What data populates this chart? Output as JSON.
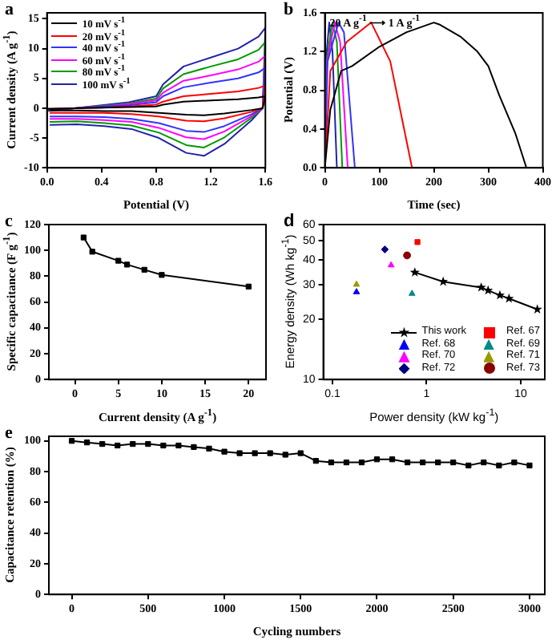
{
  "chart_data": [
    {
      "type": "line",
      "title": "a",
      "xlabel": "Potential (V)",
      "ylabel": "Current density (A g$^{-1}$)",
      "legend": "top left",
      "x": [
        0,
        0.2,
        0.4,
        0.6,
        0.8,
        0.85,
        1.0,
        1.2,
        1.4,
        1.55,
        1.6,
        1.58,
        1.5,
        1.3,
        1.15,
        1.02,
        0.82,
        0.62,
        0.42,
        0.22,
        0.02
      ],
      "series": [
        {
          "name": "10 mV s$^{-1}$",
          "color": "#000000",
          "values": [
            -0.1,
            0,
            0.1,
            0.2,
            0.3,
            0.6,
            1.1,
            1.3,
            1.5,
            1.8,
            2.0,
            0,
            -0.3,
            -0.9,
            -1.2,
            -1.1,
            -0.8,
            -0.5,
            -0.5,
            -0.4,
            -0.4
          ]
        },
        {
          "name": "20 mV s$^{-1}$",
          "color": "#ff0000",
          "values": [
            -0.1,
            0,
            0.1,
            0.3,
            0.6,
            1.1,
            2.0,
            2.4,
            2.8,
            3.4,
            3.8,
            0,
            -0.6,
            -1.7,
            -2.2,
            -2.1,
            -1.4,
            -1.0,
            -0.8,
            -0.8,
            -0.8
          ]
        },
        {
          "name": "40 mV s$^{-1}$",
          "color": "#3333ff",
          "values": [
            -0.3,
            0,
            0.3,
            0.5,
            1.0,
            2.0,
            3.5,
            4.3,
            5.0,
            6.0,
            6.8,
            0,
            -1.0,
            -3.0,
            -4.0,
            -3.8,
            -2.5,
            -1.8,
            -1.5,
            -1.4,
            -1.4
          ]
        },
        {
          "name": "60 mV s$^{-1}$",
          "color": "#ff00ff",
          "values": [
            -0.3,
            0,
            0.3,
            0.7,
            1.3,
            2.6,
            4.6,
            5.5,
            6.5,
            7.8,
            8.8,
            0,
            -1.3,
            -3.9,
            -5.2,
            -4.9,
            -3.3,
            -2.3,
            -2.0,
            -1.8,
            -1.8
          ]
        },
        {
          "name": "80 mV s$^{-1}$",
          "color": "#009900",
          "values": [
            -0.4,
            0,
            0.4,
            0.8,
            1.6,
            3.3,
            5.7,
            7.0,
            8.2,
            9.8,
            11.1,
            0,
            -1.6,
            -4.9,
            -6.6,
            -6.2,
            -4.1,
            -2.9,
            -2.5,
            -2.2,
            -2.3
          ]
        },
        {
          "name": "100 mV s$^{-1}$",
          "color": "#2222aa",
          "values": [
            -0.5,
            0,
            0.5,
            1,
            2,
            4,
            7,
            8.5,
            10,
            12,
            13.5,
            0,
            -2,
            -6,
            -8,
            -7.5,
            -5,
            -3.5,
            -3,
            -2.7,
            -2.8
          ]
        }
      ],
      "xlim": [
        0,
        1.6
      ],
      "xticks": [
        {
          "value": 0,
          "label": "0.0"
        },
        0.4,
        0.8,
        1.2,
        1.6
      ],
      "ylim": [
        -10,
        16
      ],
      "yticks": [
        -10,
        -5,
        0,
        5,
        10,
        15
      ]
    },
    {
      "type": "line",
      "title": "b",
      "xlabel": "Time (sec)",
      "ylabel": "Potential (V)",
      "annotations": [
        "20 A g$^{-1}$ ⟶ 1 A g$^{-1}$"
      ],
      "series": [
        {
          "color": "#000000",
          "x": [
            0,
            10,
            30,
            50,
            100,
            150,
            200,
            210,
            250,
            280,
            300,
            320,
            350,
            370
          ],
          "values": [
            0,
            0.6,
            1.0,
            1.05,
            1.25,
            1.4,
            1.5,
            1.48,
            1.35,
            1.2,
            1.05,
            0.75,
            0.35,
            0
          ]
        },
        {
          "color": "#ff0000",
          "x": [
            0,
            10,
            40,
            85,
            120,
            160
          ],
          "values": [
            0,
            1.0,
            1.3,
            1.5,
            1.1,
            0
          ]
        },
        {
          "color": "#3333ff",
          "x": [
            0,
            5,
            25,
            35,
            55
          ],
          "values": [
            0,
            1.1,
            1.5,
            1.4,
            0
          ]
        },
        {
          "color": "#ff00ff",
          "x": [
            0,
            4,
            18,
            28,
            42
          ],
          "values": [
            0,
            1.1,
            1.5,
            1.3,
            0
          ]
        },
        {
          "color": "#009900",
          "x": [
            0,
            3,
            14,
            22,
            32
          ],
          "values": [
            0,
            1.1,
            1.5,
            1.3,
            0
          ]
        },
        {
          "color": "#2222aa",
          "x": [
            0,
            2,
            8,
            14,
            22
          ],
          "values": [
            0,
            1.1,
            1.5,
            1.2,
            0
          ]
        }
      ],
      "xlim": [
        0,
        400
      ],
      "xticks": [
        0,
        100,
        200,
        300,
        400
      ],
      "ylim": [
        0,
        1.6
      ],
      "yticks": [
        {
          "value": 0,
          "label": "0.0"
        },
        0.4,
        0.8,
        1.2,
        1.6
      ]
    },
    {
      "type": "line",
      "title": "c",
      "xlabel": "Current density (A g$^{-1}$)",
      "ylabel": "Specific capacitance (F g$^{-1}$)",
      "marker": "square",
      "color": "#000000",
      "x": [
        1,
        2,
        5,
        6,
        8,
        10,
        20
      ],
      "values": [
        110,
        99,
        92,
        89,
        85,
        81,
        72
      ],
      "xlim": [
        -3,
        22
      ],
      "xticks": [
        0,
        5,
        10,
        15,
        20
      ],
      "ylim": [
        0,
        120
      ],
      "yticks": [
        0,
        20,
        40,
        60,
        80,
        100,
        120
      ]
    },
    {
      "type": "scatter",
      "title": "d",
      "xlabel": "Power density (kW kg$^{-1}$)",
      "ylabel": "Energy density (Wh kg$^{-1}$)",
      "log": "xy",
      "legend": "bottom right",
      "series": [
        {
          "name": "This work",
          "type": "line",
          "marker": "star",
          "color": "#000000",
          "x": [
            0.75,
            1.5,
            3.8,
            4.5,
            6,
            7.5,
            15
          ],
          "values": [
            34.5,
            31,
            29,
            28,
            26.5,
            25.5,
            22.5
          ]
        },
        {
          "name": "Ref. 67",
          "marker": "square",
          "color": "#ff0000",
          "x": [
            0.8
          ],
          "values": [
            49
          ]
        },
        {
          "name": "Ref. 68",
          "marker": "triangle",
          "color": "#0000ff",
          "x": [
            0.18
          ],
          "values": [
            27.5
          ]
        },
        {
          "name": "Ref. 69",
          "marker": "triangle",
          "color": "#008b8b",
          "x": [
            0.7
          ],
          "values": [
            27
          ]
        },
        {
          "name": "Ref. 70",
          "marker": "triangle",
          "color": "#ff00ff",
          "x": [
            0.42
          ],
          "values": [
            37.5
          ]
        },
        {
          "name": "Ref. 71",
          "marker": "triangle",
          "color": "#999900",
          "x": [
            0.18
          ],
          "values": [
            30
          ]
        },
        {
          "name": "Ref. 72",
          "marker": "diamond",
          "color": "#000080",
          "x": [
            0.36
          ],
          "values": [
            45
          ]
        },
        {
          "name": "Ref. 73",
          "marker": "circle",
          "color": "#8b0000",
          "x": [
            0.62
          ],
          "values": [
            42
          ]
        }
      ],
      "xlim": [
        0.08,
        18
      ],
      "xticks": [
        0.1,
        1,
        10
      ],
      "ylim": [
        10,
        60
      ],
      "yticks": [
        10,
        20,
        30,
        40,
        50,
        60
      ]
    },
    {
      "type": "line",
      "title": "e",
      "xlabel": "Cycling numbers",
      "ylabel": "Capacitance retention (%)",
      "marker": "square",
      "color": "#000000",
      "x": [
        0,
        100,
        200,
        300,
        400,
        500,
        600,
        700,
        800,
        900,
        1000,
        1100,
        1200,
        1300,
        1400,
        1500,
        1600,
        1700,
        1800,
        1900,
        2000,
        2100,
        2200,
        2300,
        2400,
        2500,
        2600,
        2700,
        2800,
        2900,
        3000
      ],
      "values": [
        100,
        99,
        98,
        97,
        98,
        98,
        97,
        97,
        96,
        95,
        93,
        92,
        92,
        92,
        91,
        92,
        87,
        86,
        86,
        86,
        88,
        88,
        86,
        86,
        86,
        86,
        84,
        86,
        84,
        86,
        84
      ],
      "xlim": [
        -150,
        3100
      ],
      "xticks": [
        0,
        500,
        1000,
        1500,
        2000,
        2500,
        3000
      ],
      "ylim": [
        0,
        103
      ],
      "yticks": [
        0,
        20,
        40,
        60,
        80,
        100
      ]
    }
  ]
}
